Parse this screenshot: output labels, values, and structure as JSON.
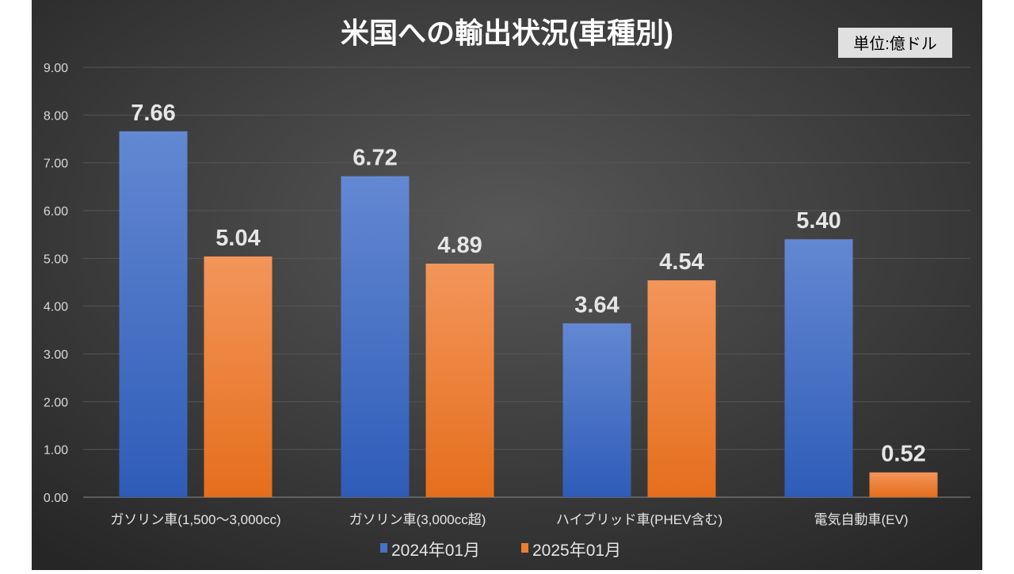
{
  "chart_data": {
    "type": "bar",
    "title": "米国への輸出状況(車種別)",
    "unit_label": "単位:億ドル",
    "categories": [
      "ガソリン車(1,500〜3,000cc)",
      "ガソリン車(3,000cc超)",
      "ハイブリッド車(PHEV含む)",
      "電気自動車(EV)"
    ],
    "series": [
      {
        "name": "2024年01月",
        "color": "#4472C4",
        "values": [
          7.66,
          6.72,
          3.64,
          5.4
        ]
      },
      {
        "name": "2025年01月",
        "color": "#ED7D31",
        "values": [
          5.04,
          4.89,
          4.54,
          0.52
        ]
      }
    ],
    "ylim": [
      0,
      9
    ],
    "yticks": [
      "0.00",
      "1.00",
      "2.00",
      "3.00",
      "4.00",
      "5.00",
      "6.00",
      "7.00",
      "8.00",
      "9.00"
    ],
    "grid": true,
    "legend": "bottom"
  }
}
